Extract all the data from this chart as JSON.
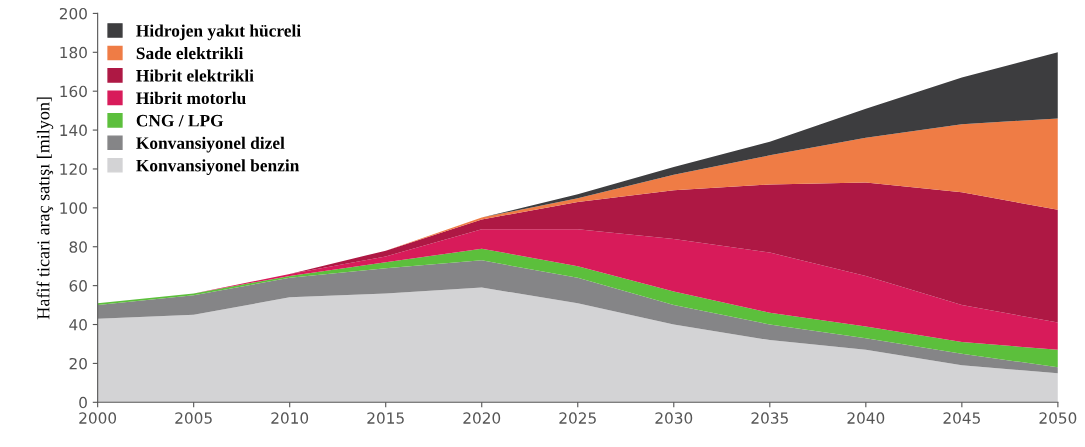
{
  "chart_data": {
    "type": "area",
    "stacked": true,
    "ylabel": "Hafif ticari araç satışı [milyon]",
    "x": [
      2000,
      2005,
      2010,
      2015,
      2020,
      2025,
      2030,
      2035,
      2040,
      2045,
      2050
    ],
    "series": [
      {
        "name": "Konvansiyonel benzin",
        "color": "#d3d3d5",
        "values": [
          43,
          45,
          54,
          56,
          59,
          51,
          40,
          32,
          27,
          19,
          15
        ]
      },
      {
        "name": "Konvansiyonel dizel",
        "color": "#858587",
        "values": [
          7,
          10,
          10,
          13,
          14,
          13,
          10,
          8,
          6,
          6,
          3
        ]
      },
      {
        "name": "CNG / LPG",
        "color": "#5cbf3c",
        "values": [
          1,
          1,
          1,
          3,
          6,
          6,
          7,
          6,
          6,
          6,
          9
        ]
      },
      {
        "name": "Hibrit motorlu",
        "color": "#d81b5a",
        "values": [
          0,
          0,
          1,
          3,
          10,
          19,
          27,
          31,
          26,
          19,
          14
        ]
      },
      {
        "name": "Hibrit elektrikli",
        "color": "#ae1844",
        "values": [
          0,
          0,
          0,
          3,
          5,
          14,
          25,
          35,
          48,
          58,
          58
        ]
      },
      {
        "name": "Sade elektrikli",
        "color": "#ef7c45",
        "values": [
          0,
          0,
          0,
          0,
          1,
          2,
          8,
          15,
          23,
          35,
          47
        ]
      },
      {
        "name": "Hidrojen yakıt hücreli",
        "color": "#3d3d3f",
        "values": [
          0,
          0,
          0,
          0,
          0,
          2,
          4,
          7,
          15,
          24,
          34
        ]
      }
    ],
    "xlim": [
      2000,
      2050
    ],
    "xticks": [
      2000,
      2005,
      2010,
      2015,
      2020,
      2025,
      2030,
      2035,
      2040,
      2045,
      2050
    ],
    "ylim": [
      0,
      200
    ],
    "yticks": [
      0,
      20,
      40,
      60,
      80,
      100,
      120,
      140,
      160,
      180,
      200
    ],
    "grid": false,
    "legend": "top left"
  }
}
